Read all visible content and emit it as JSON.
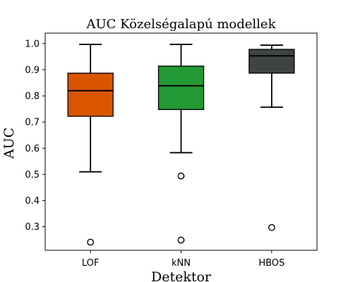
{
  "chart_data": {
    "type": "box",
    "title": "AUC Közelségalapú modellek",
    "xlabel": "Detektor",
    "ylabel": "AUC",
    "ylim": [
      0.21,
      1.04
    ],
    "yticks": [
      "0.3",
      "0.4",
      "0.5",
      "0.6",
      "0.7",
      "0.8",
      "0.9",
      "1.0"
    ],
    "grid": false,
    "categories": [
      "LOF",
      "kNN",
      "HBOS"
    ],
    "boxes": [
      {
        "name": "LOF",
        "color": "#d95500",
        "whisker_low": 0.51,
        "q1": 0.722,
        "median": 0.82,
        "q3": 0.887,
        "whisker_high": 0.997,
        "outliers": [
          0.241
        ]
      },
      {
        "name": "kNN",
        "color": "#229933",
        "whisker_low": 0.583,
        "q1": 0.748,
        "median": 0.839,
        "q3": 0.914,
        "whisker_high": 0.997,
        "outliers": [
          0.494,
          0.249
        ]
      },
      {
        "name": "HBOS",
        "color": "#3e4443",
        "whisker_low": 0.757,
        "q1": 0.887,
        "median": 0.953,
        "q3": 0.978,
        "whisker_high": 0.994,
        "outliers": [
          0.297
        ]
      }
    ]
  }
}
